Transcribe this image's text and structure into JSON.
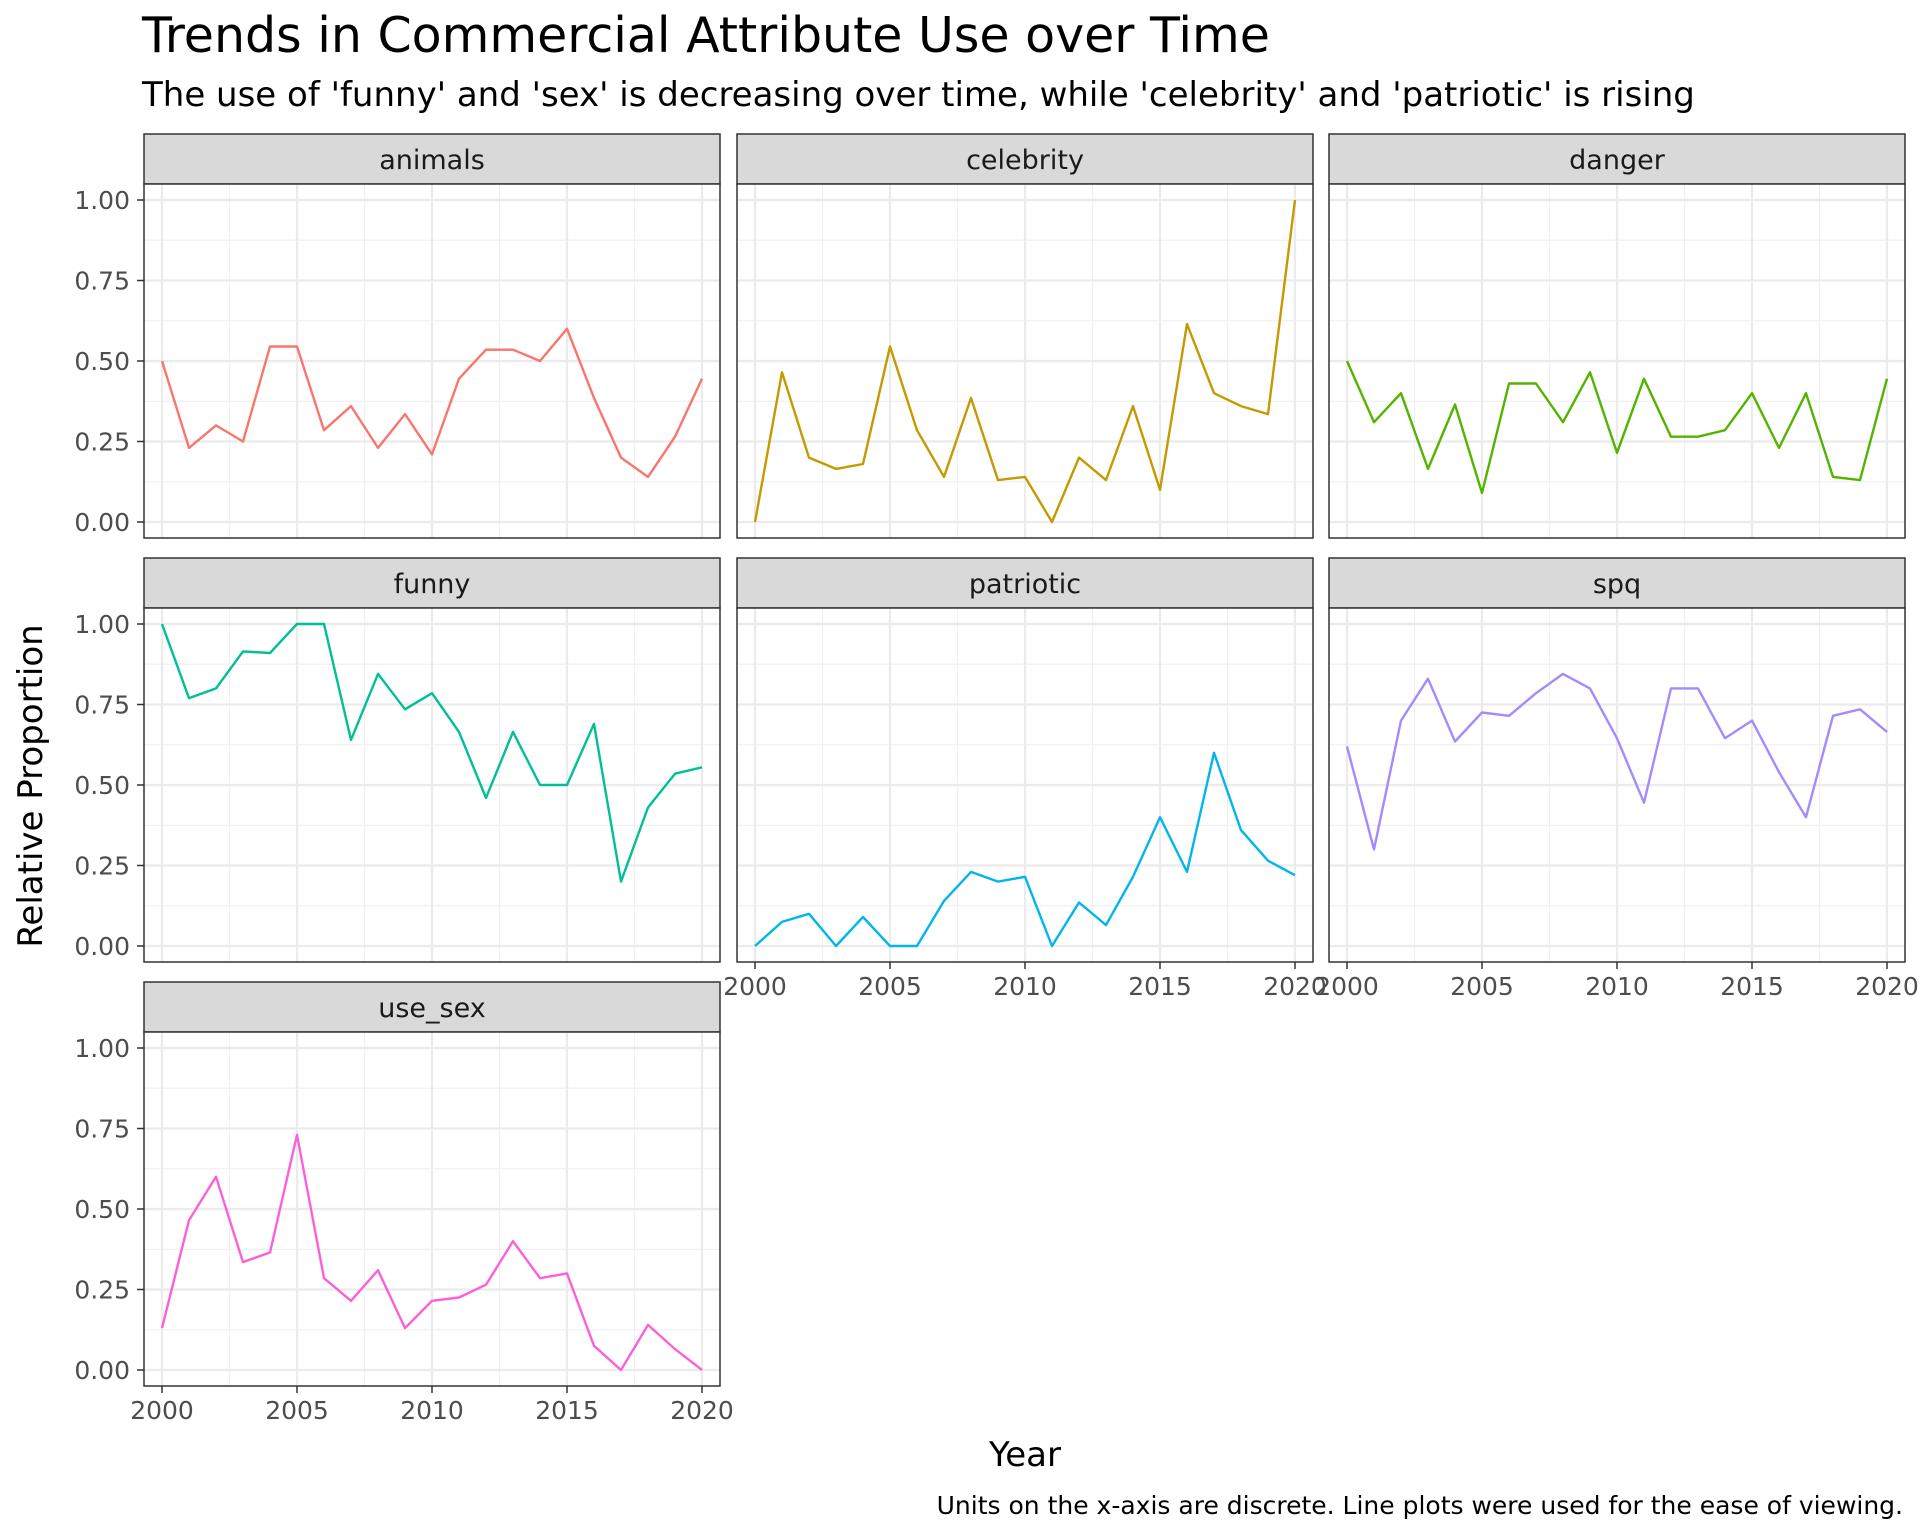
{
  "chart_data": {
    "type": "line",
    "title": "Trends in Commercial Attribute Use over Time",
    "subtitle": "The use of 'funny' and 'sex' is decreasing over time, while 'celebrity' and 'patriotic' is rising",
    "xlabel": "Year",
    "ylabel": "Relative Proportion",
    "caption": "Units on the x-axis are discrete. Line plots were used for the ease of viewing.",
    "xlim": [
      2000,
      2020
    ],
    "ylim": [
      0,
      1
    ],
    "x_ticks": [
      2000,
      2005,
      2010,
      2015,
      2020
    ],
    "x_tick_labels": [
      "2000",
      "2005",
      "2010",
      "2015",
      "2020"
    ],
    "y_ticks": [
      0,
      0.25,
      0.5,
      0.75,
      1.0
    ],
    "y_tick_labels": [
      "0.00",
      "0.25",
      "0.50",
      "0.75",
      "1.00"
    ],
    "grid": true,
    "legend": "none",
    "x": [
      2000,
      2001,
      2002,
      2003,
      2004,
      2005,
      2006,
      2007,
      2008,
      2009,
      2010,
      2011,
      2012,
      2013,
      2014,
      2015,
      2016,
      2017,
      2018,
      2019,
      2020
    ],
    "series": [
      {
        "name": "animals",
        "color": "#F8766D",
        "values": [
          0.5,
          0.23,
          0.3,
          0.25,
          0.545,
          0.545,
          0.285,
          0.36,
          0.23,
          0.335,
          0.21,
          0.445,
          0.535,
          0.535,
          0.5,
          0.6,
          0.385,
          0.2,
          0.14,
          0.265,
          0.445
        ]
      },
      {
        "name": "celebrity",
        "color": "#C49A00",
        "values": [
          0.0,
          0.465,
          0.2,
          0.165,
          0.18,
          0.545,
          0.285,
          0.14,
          0.385,
          0.13,
          0.14,
          0.0,
          0.2,
          0.13,
          0.36,
          0.1,
          0.615,
          0.4,
          0.36,
          0.335,
          1.0
        ]
      },
      {
        "name": "danger",
        "color": "#53B400",
        "values": [
          0.5,
          0.31,
          0.4,
          0.165,
          0.365,
          0.09,
          0.43,
          0.43,
          0.31,
          0.465,
          0.215,
          0.445,
          0.265,
          0.265,
          0.285,
          0.4,
          0.23,
          0.4,
          0.14,
          0.13,
          0.445
        ]
      },
      {
        "name": "funny",
        "color": "#00C094",
        "values": [
          1.0,
          0.77,
          0.8,
          0.915,
          0.91,
          1.0,
          1.0,
          0.64,
          0.845,
          0.735,
          0.785,
          0.665,
          0.46,
          0.665,
          0.5,
          0.5,
          0.69,
          0.2,
          0.43,
          0.535,
          0.555
        ]
      },
      {
        "name": "patriotic",
        "color": "#00B6EB",
        "values": [
          0.0,
          0.075,
          0.1,
          0.0,
          0.09,
          0.0,
          0.0,
          0.14,
          0.23,
          0.2,
          0.215,
          0.0,
          0.135,
          0.065,
          0.215,
          0.4,
          0.23,
          0.6,
          0.36,
          0.265,
          0.22
        ]
      },
      {
        "name": "spq",
        "color": "#A58AFF",
        "values": [
          0.62,
          0.3,
          0.7,
          0.83,
          0.635,
          0.725,
          0.715,
          0.785,
          0.845,
          0.8,
          0.645,
          0.445,
          0.8,
          0.8,
          0.645,
          0.7,
          0.54,
          0.4,
          0.715,
          0.735,
          0.665
        ]
      },
      {
        "name": "use_sex",
        "color": "#FB61D7",
        "values": [
          0.13,
          0.465,
          0.6,
          0.335,
          0.365,
          0.73,
          0.285,
          0.215,
          0.31,
          0.13,
          0.215,
          0.225,
          0.265,
          0.4,
          0.285,
          0.3,
          0.075,
          0.0,
          0.14,
          0.065,
          0.0
        ]
      }
    ]
  }
}
